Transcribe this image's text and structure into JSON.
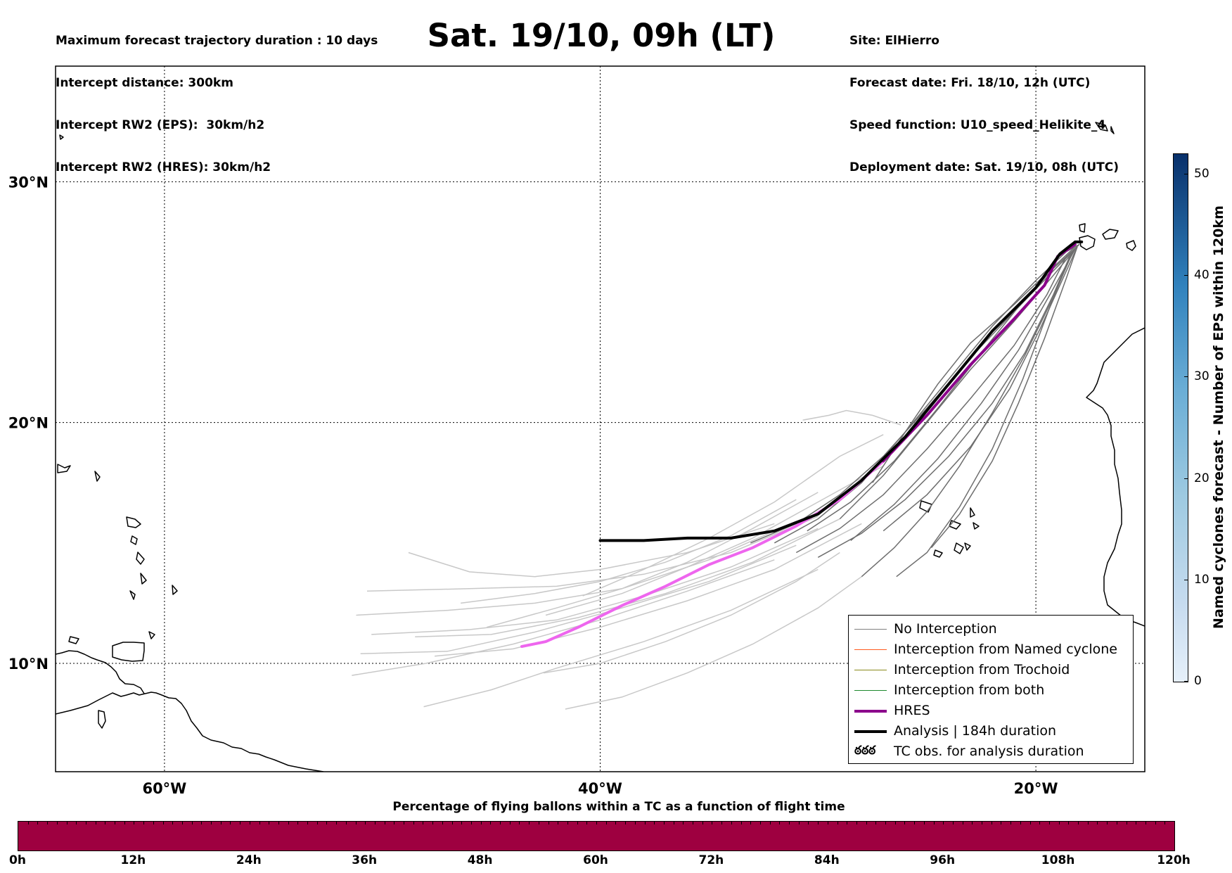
{
  "header": {
    "left_lines": [
      "Maximum forecast trajectory duration : 10 days",
      "Intercept distance: 300km",
      "Intercept RW2 (EPS):  30km/h2",
      "Intercept RW2 (HRES): 30km/h2"
    ],
    "title": "Sat. 19/10, 09h (LT)",
    "right_lines": [
      "Site: ElHierro",
      "Forecast date: Fri. 18/10, 12h (UTC)",
      "Speed function: U10_speed_Helikite_4",
      "Deployment date: Sat. 19/10, 08h (UTC)"
    ]
  },
  "map": {
    "extent": {
      "lon_min": -65,
      "lon_max": -15,
      "lat_min": 5.5,
      "lat_max": 34.8
    },
    "lat_ticks": [
      {
        "value": 30,
        "label": "30°N"
      },
      {
        "value": 20,
        "label": "20°N"
      },
      {
        "value": 10,
        "label": "10°N"
      }
    ],
    "lon_ticks": [
      {
        "value": -60,
        "label": "60°W"
      },
      {
        "value": -40,
        "label": "40°W"
      },
      {
        "value": -20,
        "label": "20°W"
      }
    ],
    "gridlines": true,
    "colors": {
      "eps_light": "#c8c8c8",
      "eps_dark": "#6e6e6e",
      "hres_light": "#ee66ee",
      "hres": "#8b008b",
      "analysis": "#000000",
      "coast": "#000000"
    }
  },
  "trajectories": {
    "analysis": [
      [
        -40,
        15.1
      ],
      [
        -38,
        15.1
      ],
      [
        -36,
        15.2
      ],
      [
        -34,
        15.2
      ],
      [
        -32,
        15.5
      ],
      [
        -30,
        16.2
      ],
      [
        -28,
        17.6
      ],
      [
        -26,
        19.4
      ],
      [
        -24,
        21.6
      ],
      [
        -22,
        23.8
      ],
      [
        -20,
        25.6
      ],
      [
        -18.9,
        27.0
      ],
      [
        -18.2,
        27.5
      ],
      [
        -17.9,
        27.5
      ]
    ],
    "hres": [
      [
        -43.6,
        10.7
      ],
      [
        -42.5,
        10.9
      ],
      [
        -41.0,
        11.5
      ],
      [
        -39,
        12.4
      ],
      [
        -37,
        13.2
      ],
      [
        -35,
        14.1
      ],
      [
        -33,
        14.8
      ],
      [
        -31,
        15.7
      ],
      [
        -29,
        16.8
      ],
      [
        -27,
        18.4
      ],
      [
        -25,
        20.3
      ],
      [
        -23,
        22.4
      ],
      [
        -21,
        24.3
      ],
      [
        -19.6,
        25.7
      ],
      [
        -19.0,
        26.9
      ],
      [
        -18.2,
        27.4
      ]
    ],
    "eps_light": [
      [
        [
          -51.4,
          9.5
        ],
        [
          -48,
          10.0
        ],
        [
          -44,
          10.8
        ],
        [
          -40,
          11.8
        ],
        [
          -36,
          13.0
        ],
        [
          -32,
          14.3
        ]
      ],
      [
        [
          -51.0,
          10.4
        ],
        [
          -47,
          10.5
        ],
        [
          -43,
          11.3
        ],
        [
          -39,
          12.3
        ],
        [
          -35,
          13.4
        ],
        [
          -31,
          14.9
        ]
      ],
      [
        [
          -50.5,
          11.2
        ],
        [
          -46,
          11.4
        ],
        [
          -42,
          11.8
        ],
        [
          -38,
          12.8
        ],
        [
          -34,
          14.0
        ],
        [
          -30,
          15.6
        ]
      ],
      [
        [
          -51.2,
          12.0
        ],
        [
          -47,
          12.2
        ],
        [
          -43,
          12.5
        ],
        [
          -39,
          13.1
        ],
        [
          -35,
          14.3
        ],
        [
          -31,
          15.9
        ]
      ],
      [
        [
          -50.7,
          13.0
        ],
        [
          -46,
          13.1
        ],
        [
          -42,
          13.2
        ],
        [
          -38,
          13.7
        ],
        [
          -34,
          14.6
        ],
        [
          -30,
          16.1
        ]
      ],
      [
        [
          -48.8,
          14.6
        ],
        [
          -46,
          13.8
        ],
        [
          -43,
          13.6
        ],
        [
          -40,
          13.9
        ],
        [
          -36,
          14.6
        ],
        [
          -32,
          15.8
        ]
      ],
      [
        [
          -48.5,
          11.1
        ],
        [
          -45,
          11.2
        ],
        [
          -41,
          11.9
        ],
        [
          -37,
          12.9
        ],
        [
          -33,
          14.2
        ],
        [
          -29,
          16.0
        ]
      ],
      [
        [
          -47.6,
          10.3
        ],
        [
          -44,
          10.6
        ],
        [
          -40,
          11.5
        ],
        [
          -36,
          12.6
        ],
        [
          -32,
          13.9
        ],
        [
          -28,
          15.8
        ]
      ],
      [
        [
          -48.1,
          8.2
        ],
        [
          -45,
          8.9
        ],
        [
          -42,
          9.8
        ],
        [
          -38,
          10.9
        ],
        [
          -34,
          12.2
        ],
        [
          -30,
          13.9
        ]
      ],
      [
        [
          -41.6,
          8.1
        ],
        [
          -39,
          8.6
        ],
        [
          -36,
          9.6
        ],
        [
          -33,
          10.8
        ],
        [
          -30,
          12.3
        ],
        [
          -28,
          13.6
        ]
      ],
      [
        [
          -42.6,
          9.6
        ],
        [
          -40,
          10.0
        ],
        [
          -37,
          10.9
        ],
        [
          -34,
          12.0
        ],
        [
          -31,
          13.4
        ],
        [
          -29,
          14.6
        ]
      ],
      [
        [
          -40.8,
          12.8
        ],
        [
          -38,
          13.9
        ],
        [
          -35,
          15.2
        ],
        [
          -32,
          16.7
        ],
        [
          -29,
          18.6
        ],
        [
          -27,
          19.5
        ]
      ],
      [
        [
          -42.5,
          12.0
        ],
        [
          -39,
          12.9
        ],
        [
          -36,
          14.0
        ],
        [
          -33,
          15.2
        ],
        [
          -30,
          16.7
        ],
        [
          -27,
          18.2
        ]
      ],
      [
        [
          -45.2,
          11.5
        ],
        [
          -42,
          12.3
        ],
        [
          -39,
          13.1
        ],
        [
          -36,
          14.2
        ],
        [
          -33,
          15.6
        ],
        [
          -30,
          17.1
        ]
      ],
      [
        [
          -46.4,
          12.5
        ],
        [
          -43,
          12.9
        ],
        [
          -40,
          13.4
        ],
        [
          -37,
          14.2
        ],
        [
          -34,
          15.3
        ],
        [
          -31,
          16.8
        ]
      ],
      [
        [
          -30.7,
          20.1
        ],
        [
          -29.5,
          20.3
        ],
        [
          -28.7,
          20.5
        ],
        [
          -27.5,
          20.3
        ],
        [
          -26.2,
          19.9
        ]
      ]
    ],
    "eps_dark": [
      [
        [
          -32,
          15.0
        ],
        [
          -30,
          16.0
        ],
        [
          -28,
          17.5
        ],
        [
          -26,
          19.6
        ],
        [
          -24,
          21.8
        ],
        [
          -22,
          24.0
        ],
        [
          -20,
          25.9
        ],
        [
          -18.6,
          27.1
        ],
        [
          -18.0,
          27.4
        ]
      ],
      [
        [
          -31,
          14.6
        ],
        [
          -29,
          15.6
        ],
        [
          -27,
          17.0
        ],
        [
          -25,
          18.9
        ],
        [
          -23,
          21.0
        ],
        [
          -21,
          23.2
        ],
        [
          -19.5,
          25.3
        ],
        [
          -18.6,
          26.9
        ],
        [
          -18.0,
          27.4
        ]
      ],
      [
        [
          -30,
          14.4
        ],
        [
          -28,
          15.4
        ],
        [
          -26,
          16.8
        ],
        [
          -24,
          18.6
        ],
        [
          -22,
          20.8
        ],
        [
          -20.5,
          22.9
        ],
        [
          -19.2,
          25.3
        ],
        [
          -18.4,
          27.0
        ]
      ],
      [
        [
          -28,
          13.6
        ],
        [
          -26.5,
          14.8
        ],
        [
          -25,
          16.3
        ],
        [
          -23.5,
          18.2
        ],
        [
          -22,
          20.4
        ],
        [
          -20.5,
          22.8
        ],
        [
          -19.2,
          25.2
        ],
        [
          -18.3,
          27.1
        ]
      ],
      [
        [
          -26.4,
          13.6
        ],
        [
          -25,
          14.6
        ],
        [
          -23.5,
          16.5
        ],
        [
          -22,
          18.9
        ],
        [
          -20.6,
          21.8
        ],
        [
          -19.4,
          24.7
        ],
        [
          -18.4,
          27.0
        ]
      ],
      [
        [
          -24.8,
          14.8
        ],
        [
          -23.5,
          16.2
        ],
        [
          -22,
          18.4
        ],
        [
          -20.8,
          20.8
        ],
        [
          -19.6,
          23.5
        ],
        [
          -18.6,
          26.0
        ],
        [
          -18.1,
          27.3
        ]
      ],
      [
        [
          -33.1,
          15.0
        ],
        [
          -31,
          15.8
        ],
        [
          -29,
          17.0
        ],
        [
          -27,
          18.6
        ],
        [
          -25,
          20.6
        ],
        [
          -23,
          22.7
        ],
        [
          -21,
          24.6
        ],
        [
          -19.2,
          26.3
        ],
        [
          -18.1,
          27.3
        ]
      ],
      [
        [
          -29,
          16.0
        ],
        [
          -27,
          17.8
        ],
        [
          -25,
          20.0
        ],
        [
          -23,
          22.2
        ],
        [
          -21,
          24.2
        ],
        [
          -19.3,
          26.0
        ],
        [
          -18.2,
          27.2
        ]
      ],
      [
        [
          -27.5,
          17.5
        ],
        [
          -26,
          19.6
        ],
        [
          -24.5,
          21.6
        ],
        [
          -23,
          23.3
        ],
        [
          -21,
          24.9
        ],
        [
          -19.5,
          26.2
        ],
        [
          -18.2,
          27.3
        ]
      ],
      [
        [
          -28.5,
          15.1
        ],
        [
          -26.5,
          16.6
        ],
        [
          -24.5,
          18.5
        ],
        [
          -22.5,
          20.8
        ],
        [
          -20.8,
          23.0
        ],
        [
          -19.3,
          25.4
        ],
        [
          -18.2,
          27.2
        ]
      ],
      [
        [
          -30.5,
          15.5
        ],
        [
          -28.5,
          16.7
        ],
        [
          -26.5,
          18.4
        ],
        [
          -24.5,
          20.6
        ],
        [
          -22.5,
          22.9
        ],
        [
          -20.8,
          24.8
        ],
        [
          -19.2,
          26.4
        ],
        [
          -18.1,
          27.3
        ]
      ],
      [
        [
          -27,
          15.5
        ],
        [
          -25,
          17.0
        ],
        [
          -23,
          19.0
        ],
        [
          -21.2,
          21.4
        ],
        [
          -19.8,
          23.9
        ],
        [
          -18.7,
          26.1
        ],
        [
          -18.1,
          27.3
        ]
      ]
    ]
  },
  "legend": {
    "items": [
      {
        "label": "No Interception",
        "color": "#808080",
        "width": 1.5
      },
      {
        "label": "Interception from Named cyclone",
        "color": "#ff5a1e",
        "width": 1.5
      },
      {
        "label": "Interception from Trochoid",
        "color": "#8a8a1c",
        "width": 1.5
      },
      {
        "label": "Interception from both",
        "color": "#1e8a2e",
        "width": 1.5
      },
      {
        "label": "HRES",
        "color": "#8b008b",
        "width": 4
      },
      {
        "label": "Analysis | 184h duration",
        "color": "#000000",
        "width": 4
      },
      {
        "label": "TC obs. for analysis duration",
        "color": "#000000",
        "width": 0,
        "symbol": "ఠఠఠ"
      }
    ]
  },
  "colorbar": {
    "title": "Named cyclones forecast - Number of EPS within 120km",
    "min": 0,
    "max": 52,
    "ticks": [
      "0",
      "10",
      "20",
      "30",
      "40",
      "50"
    ],
    "tick_values": [
      0,
      10,
      20,
      30,
      40,
      50
    ]
  },
  "percentage_bar": {
    "title": "Percentage of flying ballons within a TC as a function of flight time",
    "color": "#9e0040",
    "ticks": [
      "0h",
      "12h",
      "24h",
      "36h",
      "48h",
      "60h",
      "72h",
      "84h",
      "96h",
      "108h",
      "120h"
    ]
  }
}
